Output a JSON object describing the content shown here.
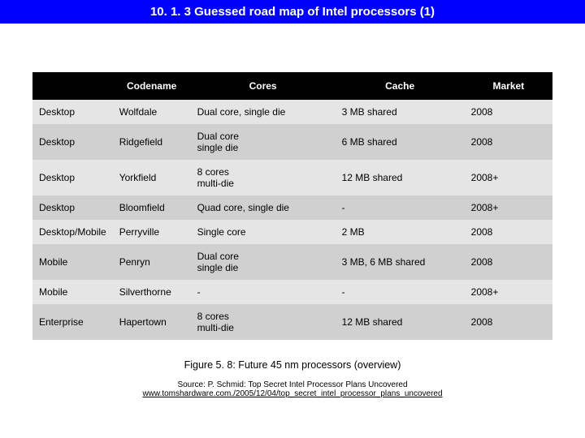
{
  "title": "10. 1. 3 Guessed road map of Intel processors (1)",
  "columns": [
    "",
    "Codename",
    "Cores",
    "Cache",
    "Market"
  ],
  "rows": [
    [
      "Desktop",
      "Wolfdale",
      "Dual core, single die",
      "3 MB shared",
      "2008"
    ],
    [
      "Desktop",
      "Ridgefield",
      "Dual core\nsingle die",
      "6 MB shared",
      "2008"
    ],
    [
      "Desktop",
      "Yorkfield",
      "8 cores\nmulti-die",
      "12 MB shared",
      "2008+"
    ],
    [
      "Desktop",
      "Bloomfield",
      "Quad core, single die",
      "-",
      "2008+"
    ],
    [
      "Desktop/Mobile",
      "Perryville",
      "Single core",
      "2 MB",
      "2008"
    ],
    [
      "Mobile",
      "Penryn",
      "Dual core\nsingle die",
      "3 MB, 6 MB shared",
      "2008"
    ],
    [
      "Mobile",
      "Silverthorne",
      "-",
      "-",
      "2008+"
    ],
    [
      "Enterprise",
      "Hapertown",
      "8 cores\nmulti-die",
      "12 MB shared",
      "2008"
    ]
  ],
  "caption": "Figure 5. 8: Future 45 nm processors (overview)",
  "source_prefix": "Source: P. Schmid: Top Secret Intel Processor Plans Uncovered",
  "source_link": "www.tomshardware.com./2005/12/04/top_secret_intel_processor_plans_uncovered",
  "colors": {
    "title_bg": "#0000ff",
    "title_fg": "#ffffff",
    "header_bg": "#000000",
    "header_fg": "#ffffff",
    "row_odd_bg": "#e5e5e5",
    "row_even_bg": "#d0d0d0",
    "text": "#000000"
  },
  "fontsize": {
    "title": 15,
    "table": 12,
    "caption": 12.5,
    "source": 10
  }
}
